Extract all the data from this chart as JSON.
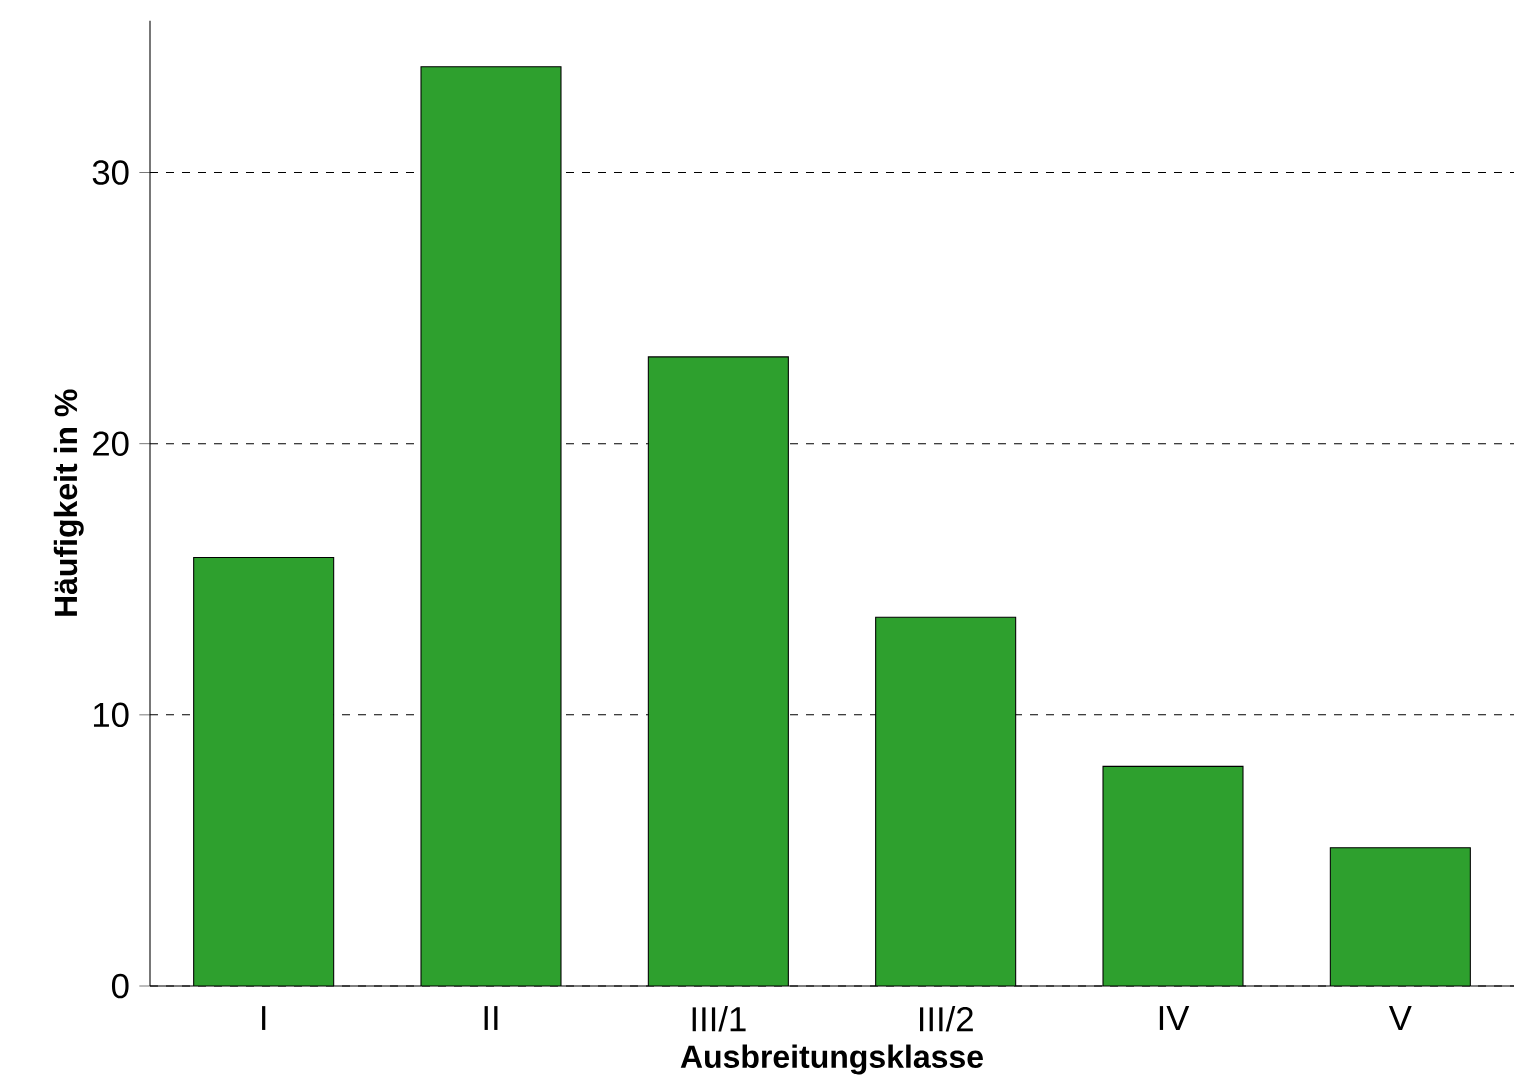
{
  "chart_data": {
    "type": "bar",
    "xlabel": "Ausbreitungsklasse",
    "ylabel": "Häufigkeit in %",
    "categories": [
      "I",
      "II",
      "III/1",
      "III/2",
      "IV",
      "V"
    ],
    "values": [
      15.8,
      33.9,
      23.2,
      13.6,
      8.1,
      5.1
    ],
    "color": "#2ea02e",
    "ylim": [
      0,
      35.6
    ],
    "yticks": [
      0,
      10,
      20,
      30
    ],
    "grid": "y"
  }
}
